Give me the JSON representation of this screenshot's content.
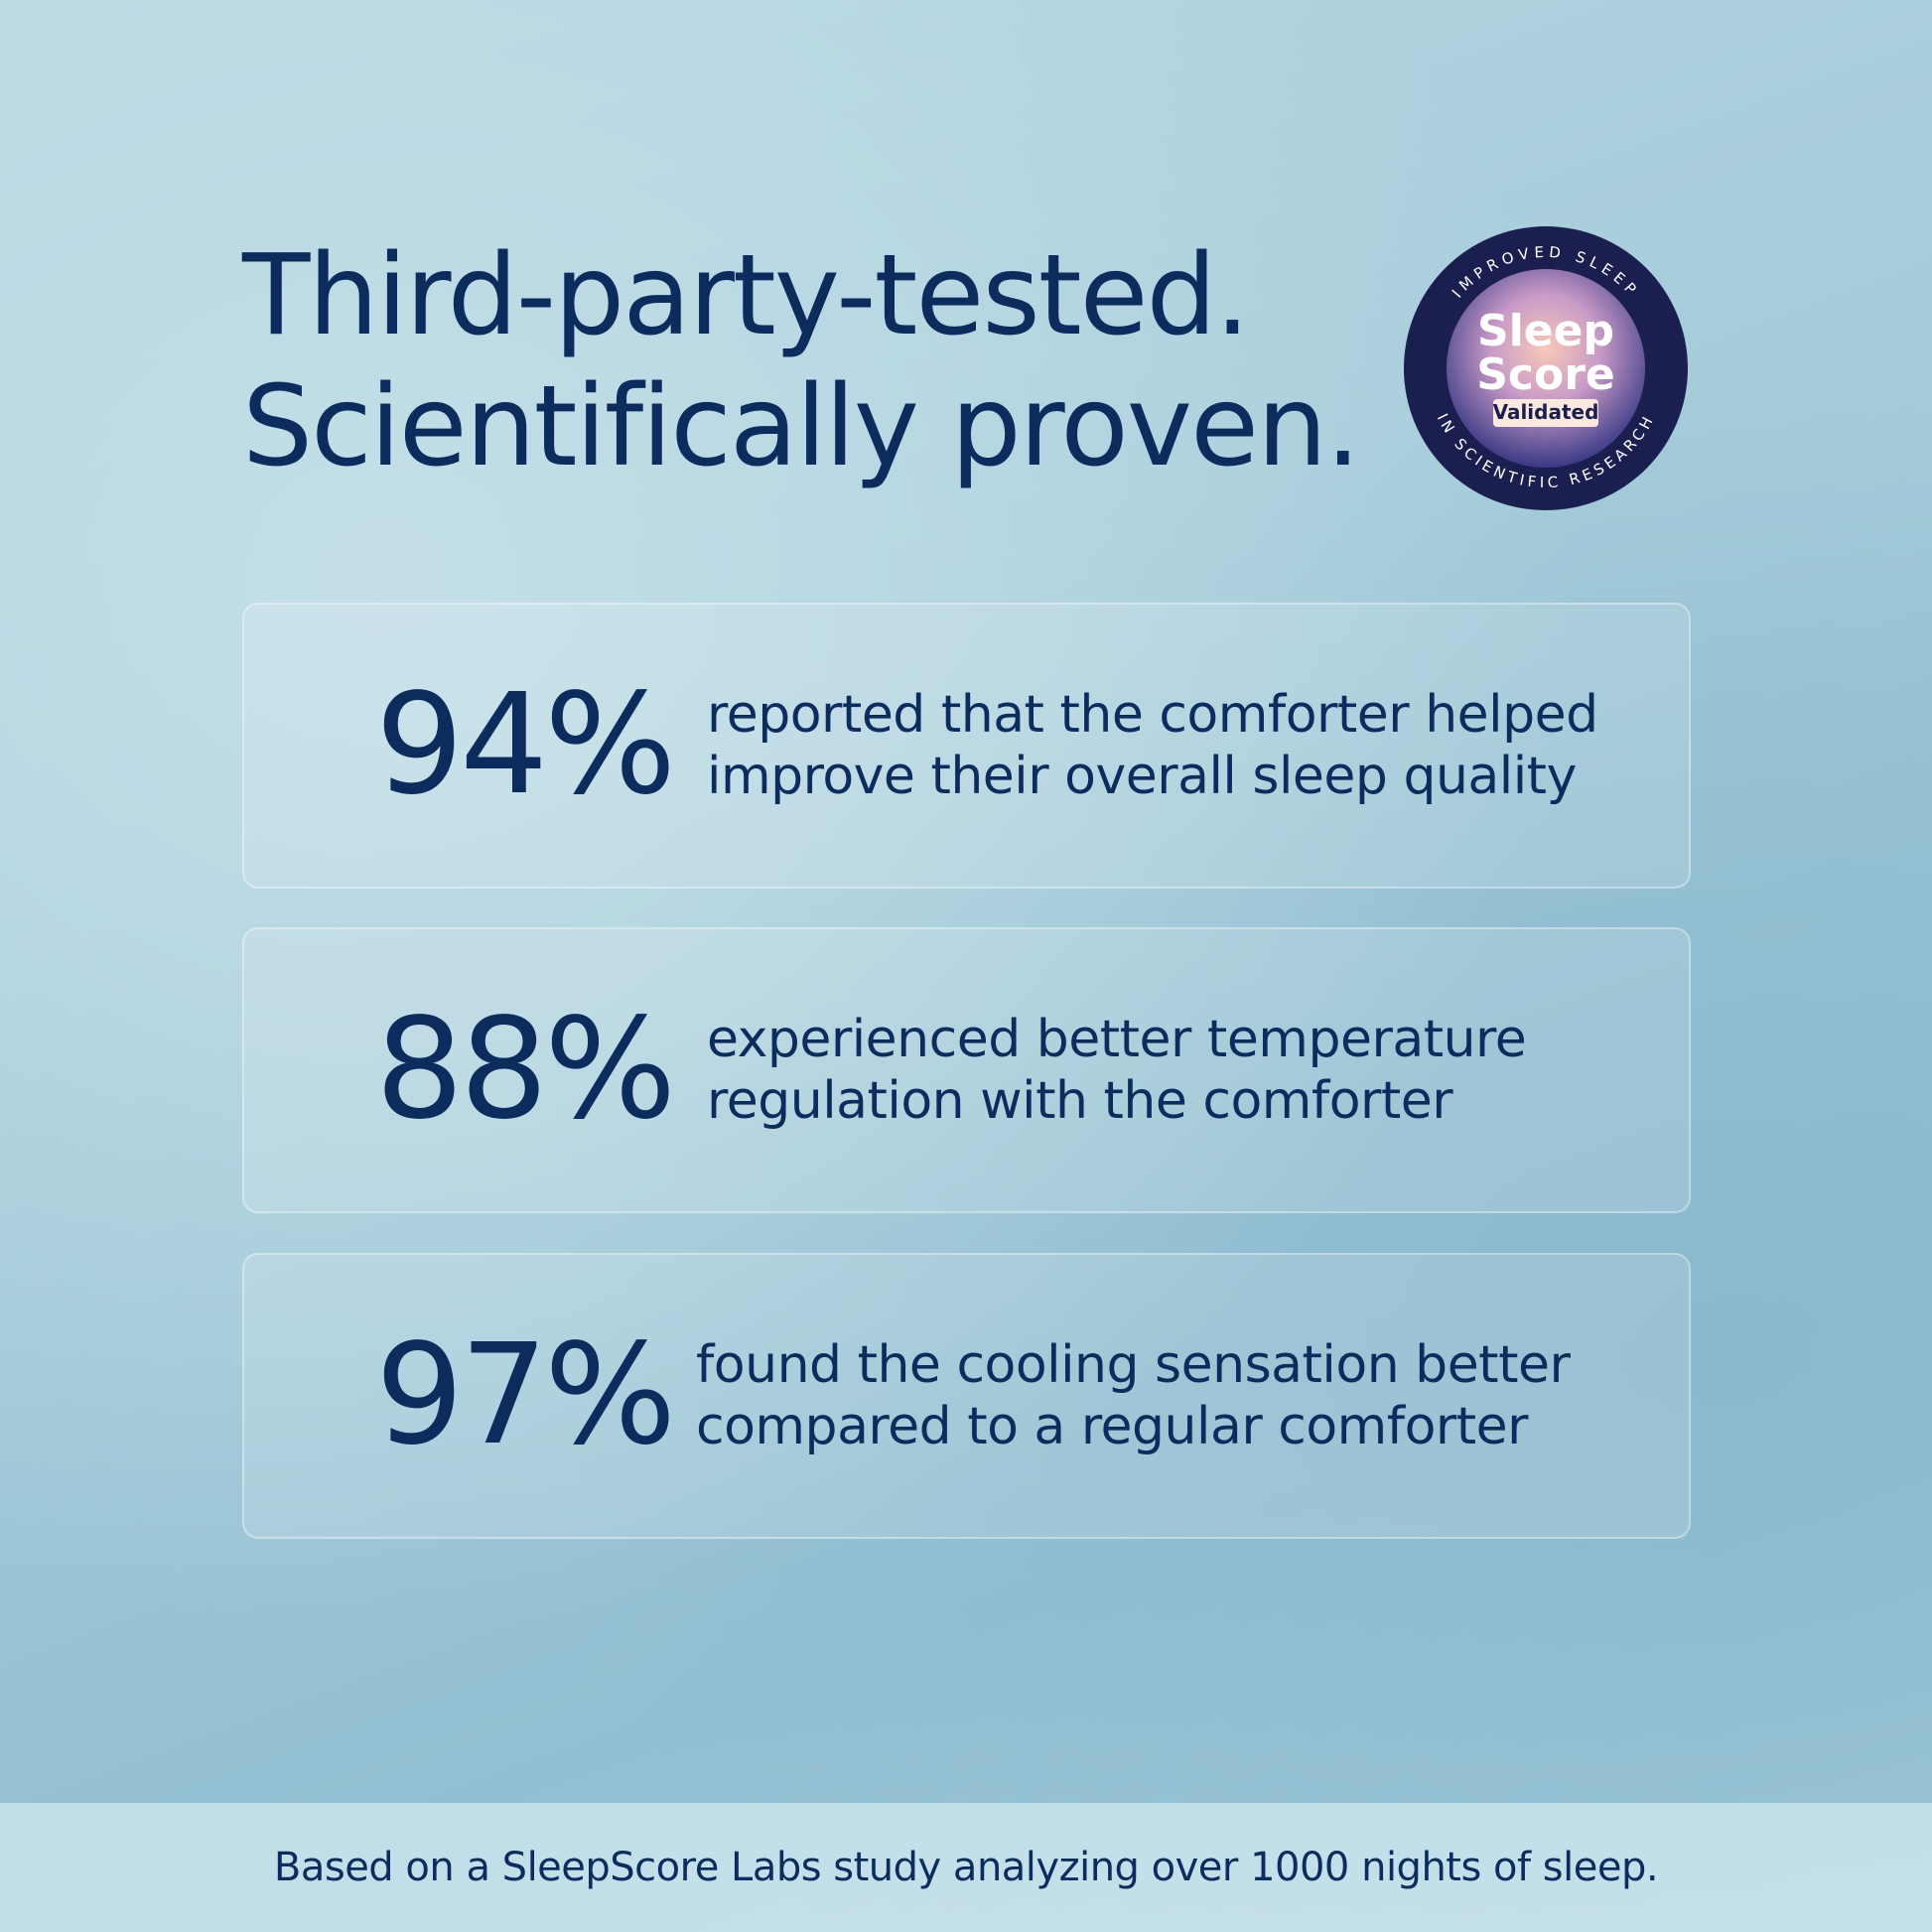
{
  "header": {
    "title_lines": [
      "Third-party-tested.",
      "Scientifically proven."
    ]
  },
  "badge": {
    "top_arc": "IMPROVED SLEEP",
    "line1": "Sleep",
    "line2": "Score",
    "tag": "Validated",
    "bottom_arc": "IN SCIENTIFIC RESEARCH"
  },
  "stats": [
    {
      "value": "94%",
      "lines": [
        "reported that the comforter helped",
        "improve their overall sleep quality"
      ]
    },
    {
      "value": "88%",
      "lines": [
        "experienced better temperature",
        "regulation with the comforter"
      ]
    },
    {
      "value": "97%",
      "lines": [
        "found the cooling sensation better",
        "compared to a regular comforter"
      ]
    }
  ],
  "footer": {
    "note": "Based on a SleepScore Labs study analyzing over 1000 nights of sleep."
  }
}
